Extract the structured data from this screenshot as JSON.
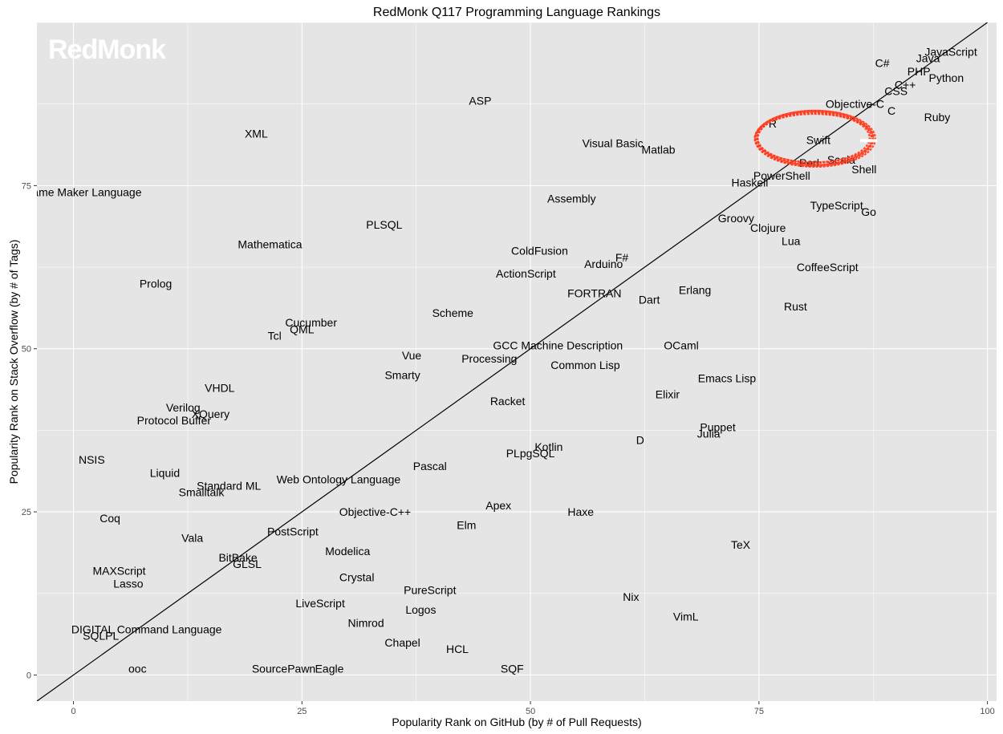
{
  "chart_data": {
    "type": "scatter",
    "title": "RedMonk Q117 Programming Language Rankings",
    "xlabel": "Popularity Rank on GitHub (by # of Pull Requests)",
    "ylabel": "Popularity Rank on Stack Overflow (by # of Tags)",
    "xlim": [
      -4,
      101
    ],
    "ylim": [
      -4,
      100
    ],
    "x_ticks": [
      0,
      25,
      50,
      75,
      100
    ],
    "y_ticks": [
      0,
      25,
      50,
      75
    ],
    "grid": true,
    "reference_line": {
      "slope": 1,
      "intercept": 0
    },
    "watermark": "RedMonk",
    "highlight": {
      "label": "Swift",
      "shape": "ellipse",
      "color": "#ff3a1c"
    },
    "points": [
      {
        "label": "JavaScript",
        "x": 96,
        "y": 95.5
      },
      {
        "label": "Java",
        "x": 93.5,
        "y": 94.5
      },
      {
        "label": "C#",
        "x": 88.5,
        "y": 93.8
      },
      {
        "label": "PHP",
        "x": 92.5,
        "y": 92.5
      },
      {
        "label": "Python",
        "x": 95.5,
        "y": 91.5
      },
      {
        "label": "C++",
        "x": 91,
        "y": 90.5
      },
      {
        "label": "CSS",
        "x": 90,
        "y": 89.5
      },
      {
        "label": "Objective-C",
        "x": 85.5,
        "y": 87.5
      },
      {
        "label": "C",
        "x": 89.5,
        "y": 86.5
      },
      {
        "label": "Ruby",
        "x": 94.5,
        "y": 85.5
      },
      {
        "label": "Swift",
        "x": 81.5,
        "y": 82
      },
      {
        "label": "R",
        "x": 76.5,
        "y": 84.5
      },
      {
        "label": "Perl",
        "x": 80.5,
        "y": 78.5
      },
      {
        "label": "Scala",
        "x": 84,
        "y": 79
      },
      {
        "label": "Shell",
        "x": 86.5,
        "y": 77.5
      },
      {
        "label": "PowerShell",
        "x": 77.5,
        "y": 76.5
      },
      {
        "label": "Haskell",
        "x": 74,
        "y": 75.5
      },
      {
        "label": "TypeScript",
        "x": 83.5,
        "y": 72
      },
      {
        "label": "Go",
        "x": 87,
        "y": 71
      },
      {
        "label": "Groovy",
        "x": 72.5,
        "y": 70
      },
      {
        "label": "Clojure",
        "x": 76,
        "y": 68.5
      },
      {
        "label": "Lua",
        "x": 78.5,
        "y": 66.5
      },
      {
        "label": "CoffeeScript",
        "x": 82.5,
        "y": 62.5
      },
      {
        "label": "Erlang",
        "x": 68,
        "y": 59
      },
      {
        "label": "Rust",
        "x": 79,
        "y": 56.5
      },
      {
        "label": "OCaml",
        "x": 66.5,
        "y": 50.5
      },
      {
        "label": "Emacs Lisp",
        "x": 71.5,
        "y": 45.5
      },
      {
        "label": "Elixir",
        "x": 65,
        "y": 43
      },
      {
        "label": "Puppet",
        "x": 70.5,
        "y": 38
      },
      {
        "label": "Julia",
        "x": 69.5,
        "y": 37
      },
      {
        "label": "D",
        "x": 62,
        "y": 36
      },
      {
        "label": "TeX",
        "x": 73,
        "y": 20
      },
      {
        "label": "VimL",
        "x": 67,
        "y": 9
      },
      {
        "label": "Nix",
        "x": 61,
        "y": 12
      },
      {
        "label": "ASP",
        "x": 44.5,
        "y": 88
      },
      {
        "label": "Visual Basic",
        "x": 59,
        "y": 81.5
      },
      {
        "label": "Matlab",
        "x": 64,
        "y": 80.5
      },
      {
        "label": "Assembly",
        "x": 54.5,
        "y": 73
      },
      {
        "label": "ColdFusion",
        "x": 51,
        "y": 65
      },
      {
        "label": "F#",
        "x": 60,
        "y": 64
      },
      {
        "label": "Arduino",
        "x": 58,
        "y": 63
      },
      {
        "label": "ActionScript",
        "x": 49.5,
        "y": 61.5
      },
      {
        "label": "FORTRAN",
        "x": 57,
        "y": 58.5
      },
      {
        "label": "Dart",
        "x": 63,
        "y": 57.5
      },
      {
        "label": "Scheme",
        "x": 41.5,
        "y": 55.5
      },
      {
        "label": "GCC Machine Description",
        "x": 53,
        "y": 50.5
      },
      {
        "label": "Common Lisp",
        "x": 56,
        "y": 47.5
      },
      {
        "label": "Processing",
        "x": 45.5,
        "y": 48.5
      },
      {
        "label": "Racket",
        "x": 47.5,
        "y": 42
      },
      {
        "label": "Kotlin",
        "x": 52,
        "y": 35
      },
      {
        "label": "PLpgSQL",
        "x": 50,
        "y": 34
      },
      {
        "label": "Apex",
        "x": 46.5,
        "y": 26
      },
      {
        "label": "Haxe",
        "x": 55.5,
        "y": 25
      },
      {
        "label": "Elm",
        "x": 43,
        "y": 23
      },
      {
        "label": "PureScript",
        "x": 39,
        "y": 13
      },
      {
        "label": "Logos",
        "x": 38,
        "y": 10
      },
      {
        "label": "HCL",
        "x": 42,
        "y": 4
      },
      {
        "label": "SQF",
        "x": 48,
        "y": 1
      },
      {
        "label": "XML",
        "x": 20,
        "y": 83
      },
      {
        "label": "Game Maker Language",
        "x": 1,
        "y": 74
      },
      {
        "label": "PLSQL",
        "x": 34,
        "y": 69
      },
      {
        "label": "Mathematica",
        "x": 21.5,
        "y": 66
      },
      {
        "label": "Prolog",
        "x": 9,
        "y": 60
      },
      {
        "label": "Cucumber",
        "x": 26,
        "y": 54
      },
      {
        "label": "QML",
        "x": 25,
        "y": 53
      },
      {
        "label": "Tcl",
        "x": 22,
        "y": 52
      },
      {
        "label": "Vue",
        "x": 37,
        "y": 49
      },
      {
        "label": "Smarty",
        "x": 36,
        "y": 46
      },
      {
        "label": "VHDL",
        "x": 16,
        "y": 44
      },
      {
        "label": "Verilog",
        "x": 12,
        "y": 41
      },
      {
        "label": "XQuery",
        "x": 15,
        "y": 40
      },
      {
        "label": "Protocol Buffer",
        "x": 11,
        "y": 39
      },
      {
        "label": "NSIS",
        "x": 2,
        "y": 33
      },
      {
        "label": "Pascal",
        "x": 39,
        "y": 32
      },
      {
        "label": "Liquid",
        "x": 10,
        "y": 31
      },
      {
        "label": "Web Ontology Language",
        "x": 29,
        "y": 30
      },
      {
        "label": "Standard ML",
        "x": 17,
        "y": 29
      },
      {
        "label": "Smalltalk",
        "x": 14,
        "y": 28
      },
      {
        "label": "Objective-C++",
        "x": 33,
        "y": 25
      },
      {
        "label": "Coq",
        "x": 4,
        "y": 24
      },
      {
        "label": "PostScript",
        "x": 24,
        "y": 22
      },
      {
        "label": "Vala",
        "x": 13,
        "y": 21
      },
      {
        "label": "Modelica",
        "x": 30,
        "y": 19
      },
      {
        "label": "BitBake",
        "x": 18,
        "y": 18
      },
      {
        "label": "GLSL",
        "x": 19,
        "y": 17
      },
      {
        "label": "MAXScript",
        "x": 5,
        "y": 16
      },
      {
        "label": "Crystal",
        "x": 31,
        "y": 15
      },
      {
        "label": "Lasso",
        "x": 6,
        "y": 14
      },
      {
        "label": "LiveScript",
        "x": 27,
        "y": 11
      },
      {
        "label": "Nimrod",
        "x": 32,
        "y": 8
      },
      {
        "label": "DIGITAL Command Language",
        "x": 8,
        "y": 7
      },
      {
        "label": "SQLPL",
        "x": 3,
        "y": 6
      },
      {
        "label": "Chapel",
        "x": 36,
        "y": 5
      },
      {
        "label": "ooc",
        "x": 7,
        "y": 1
      },
      {
        "label": "SourcePawn",
        "x": 23,
        "y": 1
      },
      {
        "label": "Eagle",
        "x": 28,
        "y": 1
      }
    ]
  }
}
